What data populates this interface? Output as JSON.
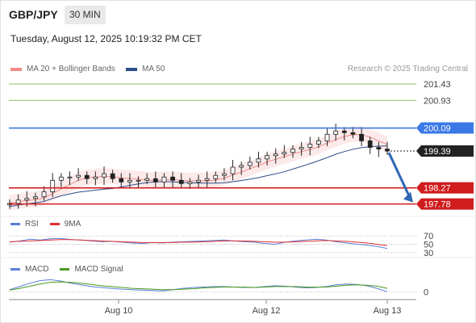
{
  "header": {
    "symbol": "GBP/JPY",
    "timeframe": "30 MIN",
    "timestamp": "Tuesday, August 12, 2025 10:19:32 PM CET"
  },
  "legend": {
    "ma_bb_label": "MA 20 + Bollinger Bands",
    "ma50_label": "MA 50",
    "copyright": "Research © 2025 Trading Central",
    "colors": {
      "ma_bb": "#f08a8a",
      "ma50": "#2c4f8a"
    }
  },
  "rsi_legend": {
    "rsi_label": "RSI",
    "ma_label": "9MA",
    "colors": {
      "rsi": "#5b7fd6",
      "ma": "#e03030"
    }
  },
  "macd_legend": {
    "macd_label": "MACD",
    "signal_label": "MACD Signal",
    "colors": {
      "macd": "#5b7fd6",
      "signal": "#4a9a1f"
    }
  },
  "chart_data": [
    {
      "type": "candlestick",
      "title": "GBP/JPY",
      "x_ticks": [
        "Aug 10",
        "Aug 12",
        "Aug 13"
      ],
      "ylim": [
        197.55,
        201.65
      ],
      "levels": [
        {
          "value": 201.43,
          "label": "201.43",
          "kind": "resistance",
          "color": "#8fc06a"
        },
        {
          "value": 200.93,
          "label": "200.93",
          "kind": "resistance",
          "color": "#8fc06a"
        },
        {
          "value": 200.09,
          "label": "200.09",
          "kind": "pivot",
          "color": "#3a78e6"
        },
        {
          "value": 198.27,
          "label": "198.27",
          "kind": "support",
          "color": "#d01c1c"
        },
        {
          "value": 197.78,
          "label": "197.78",
          "kind": "support",
          "color": "#d01c1c"
        }
      ],
      "last_price": {
        "value": 199.39,
        "label": "199.39"
      },
      "forecast_arrow": {
        "from": 199.39,
        "to": 197.78,
        "direction": "down",
        "color": "#2f66b3"
      },
      "candles_close_approx": [
        197.8,
        197.9,
        197.95,
        198.0,
        198.15,
        198.5,
        198.6,
        198.6,
        198.65,
        198.55,
        198.6,
        198.7,
        198.55,
        198.45,
        198.5,
        198.5,
        198.55,
        198.45,
        198.6,
        198.5,
        198.4,
        198.45,
        198.5,
        198.55,
        198.65,
        198.7,
        198.9,
        198.95,
        199.05,
        199.15,
        199.25,
        199.3,
        199.35,
        199.45,
        199.5,
        199.6,
        199.7,
        199.9,
        200.0,
        199.95,
        199.9,
        199.7,
        199.5,
        199.45,
        199.39
      ],
      "x_range_index": [
        0,
        44
      ]
    },
    {
      "type": "line",
      "title": "RSI",
      "y_ticks": [
        70,
        50,
        30
      ],
      "ylim": [
        20,
        80
      ],
      "series": [
        {
          "name": "RSI",
          "values": [
            55,
            58,
            62,
            60,
            63,
            64,
            61,
            60,
            58,
            56,
            57,
            55,
            53,
            52,
            54,
            53,
            55,
            56,
            57,
            58,
            59,
            60,
            58,
            56,
            55,
            52,
            50,
            55,
            58,
            60,
            62,
            60,
            56,
            53,
            50,
            48,
            45,
            40
          ]
        },
        {
          "name": "9MA",
          "values": [
            56,
            57,
            58,
            59,
            60,
            61,
            61,
            60,
            59,
            58,
            57,
            56,
            55,
            54,
            54,
            54,
            54,
            55,
            55,
            56,
            57,
            58,
            58,
            58,
            57,
            56,
            55,
            55,
            56,
            57,
            58,
            59,
            58,
            57,
            55,
            53,
            50,
            47
          ]
        }
      ]
    },
    {
      "type": "line",
      "title": "MACD",
      "y_ticks": [
        0
      ],
      "ylim": [
        -0.2,
        0.4
      ],
      "series": [
        {
          "name": "MACD",
          "values": [
            0.05,
            0.12,
            0.2,
            0.26,
            0.28,
            0.25,
            0.2,
            0.16,
            0.12,
            0.1,
            0.08,
            0.06,
            0.05,
            0.04,
            0.03,
            0.02,
            0.05,
            0.08,
            0.1,
            0.11,
            0.12,
            0.12,
            0.11,
            0.1,
            0.1,
            0.12,
            0.14,
            0.13,
            0.11,
            0.09,
            0.1,
            0.12,
            0.16,
            0.18,
            0.17,
            0.14,
            0.08,
            0.0
          ]
        },
        {
          "name": "MACD Signal",
          "values": [
            0.04,
            0.08,
            0.13,
            0.18,
            0.22,
            0.23,
            0.22,
            0.2,
            0.17,
            0.14,
            0.12,
            0.1,
            0.08,
            0.07,
            0.06,
            0.05,
            0.05,
            0.06,
            0.07,
            0.09,
            0.1,
            0.11,
            0.11,
            0.11,
            0.1,
            0.11,
            0.12,
            0.12,
            0.12,
            0.11,
            0.11,
            0.11,
            0.13,
            0.15,
            0.16,
            0.15,
            0.13,
            0.08
          ]
        }
      ]
    }
  ]
}
